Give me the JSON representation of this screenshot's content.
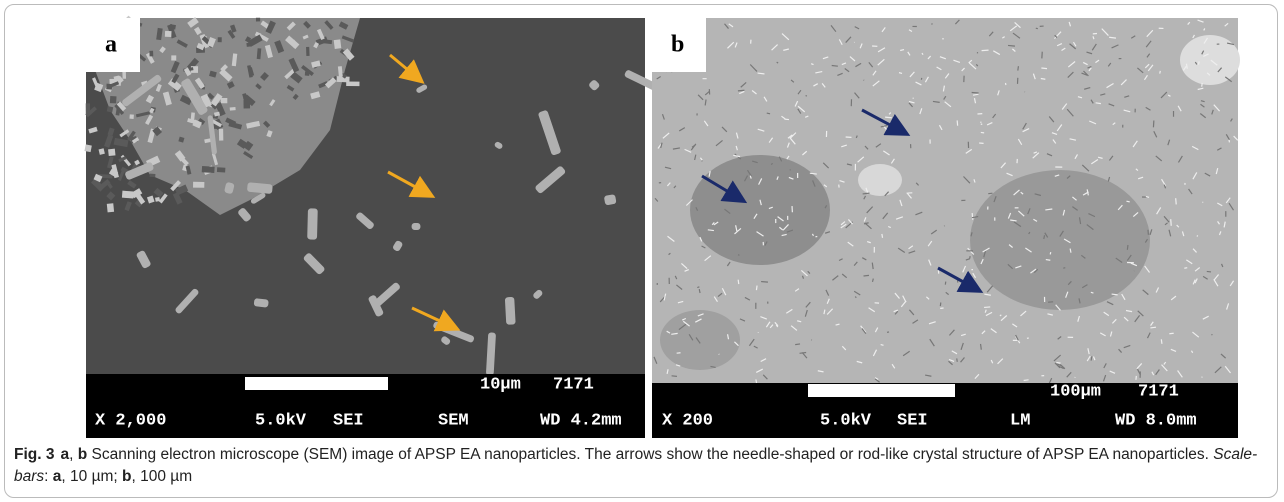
{
  "panels": [
    {
      "label": "a",
      "scale": "10µm",
      "code": "7171",
      "magnification": "X 2,000",
      "voltage": "5.0kV",
      "detector": "SEI",
      "mode": "SEM",
      "working_distance": "WD 4.2mm"
    },
    {
      "label": "b",
      "scale": "100µm",
      "code": "7171",
      "magnification": "X 200",
      "voltage": "5.0kV",
      "detector": "SEI",
      "mode": "LM",
      "working_distance": "WD 8.0mm"
    }
  ],
  "caption": [
    {
      "text": "Fig. 3",
      "style": "bold"
    },
    {
      "text": "a",
      "style": "bold"
    },
    {
      "text": ", ",
      "style": "normal"
    },
    {
      "text": "b",
      "style": "bold"
    },
    {
      "text": " Scanning electron microscope (SEM) image of APSP EA nanoparticles. The arrows show the needle-shaped or rod-like crystal structure of APSP EA nanoparticles. ",
      "style": "normal"
    },
    {
      "text": "Scale-bars",
      "style": "italic"
    },
    {
      "text": ": ",
      "style": "normal"
    },
    {
      "text": "a",
      "style": "bold"
    },
    {
      "text": ", 10 µm; ",
      "style": "normal"
    },
    {
      "text": "b",
      "style": "bold"
    },
    {
      "text": ", 100 µm",
      "style": "normal"
    }
  ]
}
